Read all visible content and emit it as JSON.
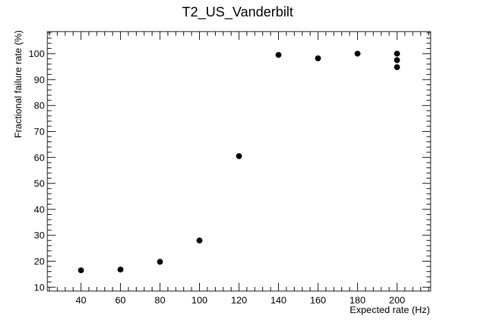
{
  "chart_data": {
    "type": "scatter",
    "title": "T2_US_Vanderbilt",
    "xlabel": "Expected rate (Hz)",
    "ylabel": "Fractional failure rate (%)",
    "xlim": [
      23,
      217
    ],
    "ylim": [
      8.5,
      108.5
    ],
    "x_ticks": [
      40,
      60,
      80,
      100,
      120,
      140,
      160,
      180,
      200
    ],
    "y_ticks": [
      10,
      20,
      30,
      40,
      50,
      60,
      70,
      80,
      90,
      100
    ],
    "x_minor_step": 4,
    "y_minor_step": 2,
    "grid": false,
    "series": [
      {
        "x": [
          40,
          60,
          80,
          100,
          120,
          140,
          160,
          180,
          200,
          200,
          200
        ],
        "y": [
          16.5,
          16.8,
          19.8,
          28,
          60.5,
          99.5,
          98.2,
          100,
          100,
          97.5,
          94.8
        ]
      }
    ]
  }
}
